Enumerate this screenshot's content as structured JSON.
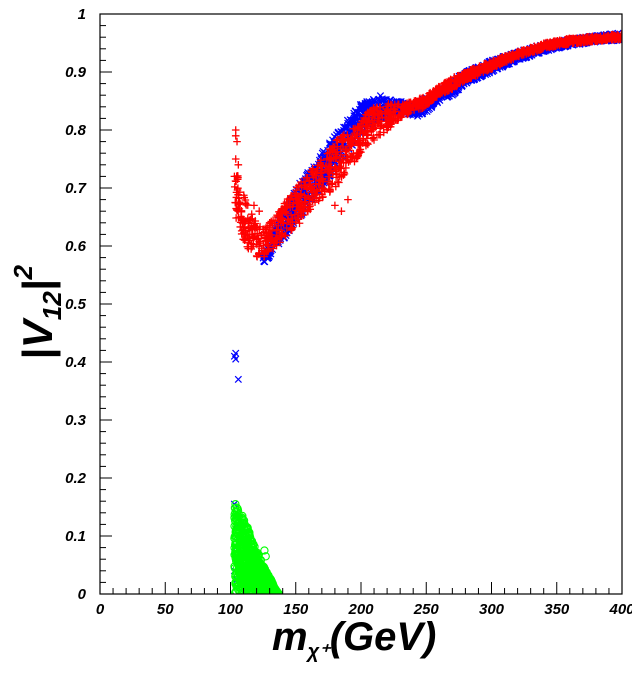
{
  "chart_data": {
    "type": "scatter",
    "xlabel": {
      "main": "m",
      "sub": "χ⁺",
      "tail": "(GeV)"
    },
    "ylabel": {
      "main": "|V",
      "sub": "12",
      "tail": "|",
      "sup": "2"
    },
    "xlim": [
      0,
      400
    ],
    "ylim": [
      0,
      1
    ],
    "x_ticks": [
      "0",
      "50",
      "100",
      "150",
      "200",
      "250",
      "300",
      "350",
      "400"
    ],
    "y_ticks": [
      "0",
      "0.1",
      "0.2",
      "0.3",
      "0.4",
      "0.5",
      "0.6",
      "0.7",
      "0.8",
      "0.9",
      "1"
    ],
    "grid": false,
    "series": [
      {
        "marker": "x",
        "color": "#0000ff",
        "band": {
          "x": [
            125,
            130,
            140,
            150,
            160,
            170,
            180,
            190,
            200,
            210,
            215,
            220,
            225,
            230,
            240,
            250,
            260,
            270,
            280,
            290,
            300,
            320,
            340,
            360,
            380,
            400
          ],
          "low": [
            0.57,
            0.58,
            0.61,
            0.64,
            0.67,
            0.7,
            0.73,
            0.76,
            0.79,
            0.81,
            0.82,
            0.82,
            0.83,
            0.83,
            0.82,
            0.83,
            0.85,
            0.86,
            0.88,
            0.89,
            0.9,
            0.92,
            0.935,
            0.945,
            0.952,
            0.955
          ],
          "high": [
            0.59,
            0.61,
            0.66,
            0.7,
            0.73,
            0.76,
            0.79,
            0.82,
            0.845,
            0.855,
            0.86,
            0.855,
            0.85,
            0.85,
            0.845,
            0.855,
            0.87,
            0.885,
            0.9,
            0.91,
            0.92,
            0.935,
            0.948,
            0.957,
            0.963,
            0.968
          ]
        },
        "points": [
          [
            103,
            0.41
          ],
          [
            104,
            0.405
          ],
          [
            104,
            0.415
          ],
          [
            106,
            0.37
          ],
          [
            103,
            0.155
          ],
          [
            104,
            0.14
          ],
          [
            105,
            0.12
          ],
          [
            104,
            0.08
          ],
          [
            106,
            0.06
          ],
          [
            103,
            0.04
          ],
          [
            107,
            0.05
          ],
          [
            105,
            0.025
          ],
          [
            120,
            0.065
          ]
        ]
      },
      {
        "marker": "+",
        "color": "#ff0000",
        "band": {
          "x": [
            103,
            106,
            110,
            115,
            120,
            125,
            130,
            140,
            150,
            160,
            170,
            180,
            190,
            200,
            210,
            220,
            230,
            240,
            250,
            260,
            270,
            280,
            290,
            300,
            320,
            340,
            360,
            380,
            400
          ],
          "low": [
            0.65,
            0.63,
            0.61,
            0.59,
            0.58,
            0.58,
            0.59,
            0.61,
            0.63,
            0.66,
            0.68,
            0.7,
            0.73,
            0.76,
            0.78,
            0.8,
            0.82,
            0.83,
            0.84,
            0.86,
            0.87,
            0.885,
            0.895,
            0.905,
            0.925,
            0.94,
            0.948,
            0.953,
            0.956
          ],
          "high": [
            0.76,
            0.72,
            0.69,
            0.66,
            0.64,
            0.63,
            0.64,
            0.67,
            0.7,
            0.73,
            0.75,
            0.78,
            0.8,
            0.82,
            0.84,
            0.845,
            0.845,
            0.85,
            0.86,
            0.875,
            0.89,
            0.9,
            0.91,
            0.92,
            0.935,
            0.95,
            0.958,
            0.962,
            0.966
          ]
        },
        "points": [
          [
            104,
            0.8
          ],
          [
            104,
            0.79
          ],
          [
            105,
            0.78
          ],
          [
            104,
            0.75
          ],
          [
            103,
            0.72
          ],
          [
            106,
            0.74
          ],
          [
            118,
            0.67
          ],
          [
            122,
            0.66
          ],
          [
            130,
            0.64
          ],
          [
            180,
            0.67
          ],
          [
            185,
            0.66
          ],
          [
            190,
            0.68
          ],
          [
            170,
            0.7
          ]
        ]
      },
      {
        "marker": "o",
        "color": "#00ff00",
        "region": {
          "x_upper": [
            103,
            106,
            110,
            114,
            118,
            122,
            126,
            130,
            134,
            137
          ],
          "upper": [
            0.16,
            0.15,
            0.13,
            0.11,
            0.085,
            0.065,
            0.045,
            0.03,
            0.01,
            0.0
          ],
          "lower": [
            0.0,
            0.0,
            0.0,
            0.0,
            0.0,
            0.0,
            0.0,
            0.0,
            0.0,
            0.0
          ]
        },
        "points": [
          [
            126,
            0.075
          ],
          [
            127,
            0.065
          ],
          [
            132,
            0.01
          ],
          [
            135,
            0.005
          ]
        ]
      }
    ]
  }
}
